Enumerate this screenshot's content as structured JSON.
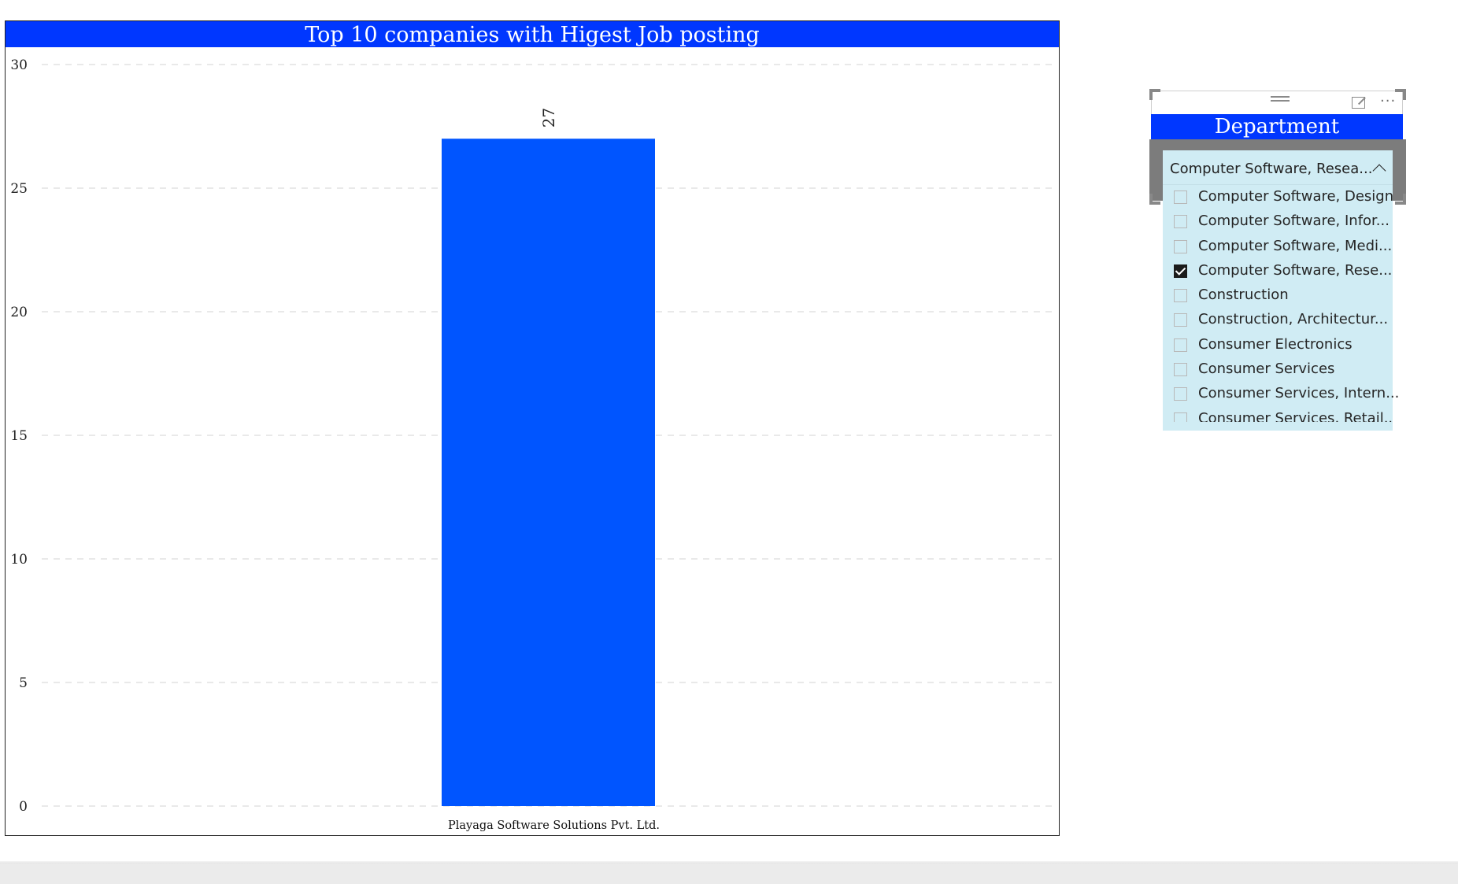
{
  "chart": {
    "title": "Top 10 companies with Higest Job posting"
  },
  "chart_data": {
    "type": "bar",
    "title": "Top 10 companies with Higest Job posting",
    "categories": [
      "Playaga Software Solutions Pvt. Ltd."
    ],
    "values": [
      27
    ],
    "data_labels": [
      "27"
    ],
    "ylim": [
      0,
      30
    ],
    "yticks": [
      0,
      5,
      10,
      15,
      20,
      25,
      30
    ],
    "xlabel": "",
    "ylabel": "",
    "grid": true,
    "bar_color": "#0055ff"
  },
  "slicer": {
    "title": "Department",
    "selected_value": "Computer Software, Resea...",
    "options": [
      {
        "label": "Computer Software, Design",
        "checked": false
      },
      {
        "label": "Computer Software, Infor...",
        "checked": false
      },
      {
        "label": "Computer Software, Medi...",
        "checked": false
      },
      {
        "label": "Computer Software, Rese...",
        "checked": true
      },
      {
        "label": "Construction",
        "checked": false
      },
      {
        "label": "Construction, Architectur...",
        "checked": false
      },
      {
        "label": "Consumer Electronics",
        "checked": false
      },
      {
        "label": "Consumer Services",
        "checked": false
      },
      {
        "label": "Consumer Services, Intern...",
        "checked": false
      },
      {
        "label": "Consumer Services, Retail...",
        "checked": false
      }
    ],
    "icons": [
      "drag-handle-icon",
      "focus-mode-icon",
      "more-options-icon",
      "chevron-up-icon",
      "checkbox-icon"
    ]
  },
  "colors": {
    "title_bar": "#0037ff",
    "bar": "#0055ff",
    "slicer_bg": "#d0ecf4"
  }
}
